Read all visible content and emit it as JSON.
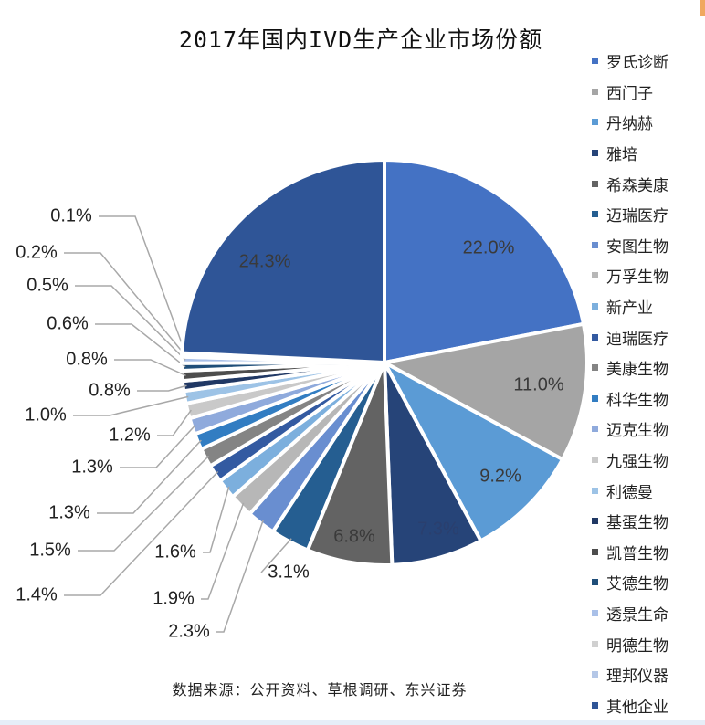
{
  "title": "2017年国内IVD生产企业市场份额",
  "source": "数据来源：公开资料、草根调研、东兴证券",
  "chart_data": {
    "type": "pie",
    "title": "2017年国内IVD生产企业市场份额",
    "start": "12 o'clock, clockwise",
    "legend_position": "right",
    "slices": [
      {
        "name": "罗氏诊断",
        "value": 22.0,
        "label": "22.0%",
        "color": "#4472C4"
      },
      {
        "name": "西门子",
        "value": 11.0,
        "label": "11.0%",
        "color": "#A5A5A5"
      },
      {
        "name": "丹纳赫",
        "value": 9.2,
        "label": "9.2%",
        "color": "#5B9BD5"
      },
      {
        "name": "雅培",
        "value": 7.3,
        "label": "7.3%",
        "color": "#264478"
      },
      {
        "name": "希森美康",
        "value": 6.8,
        "label": "6.8%",
        "color": "#636363"
      },
      {
        "name": "迈瑞医疗",
        "value": 3.1,
        "label": "3.1%",
        "color": "#255E91"
      },
      {
        "name": "安图生物",
        "value": 2.3,
        "label": "2.3%",
        "color": "#698ED0"
      },
      {
        "name": "万孚生物",
        "value": 1.9,
        "label": "1.9%",
        "color": "#B7B7B7"
      },
      {
        "name": "新产业",
        "value": 1.6,
        "label": "1.6%",
        "color": "#7CAFDD"
      },
      {
        "name": "迪瑞医疗",
        "value": 1.4,
        "label": "1.4%",
        "color": "#335AA1"
      },
      {
        "name": "美康生物",
        "value": 1.5,
        "label": "1.5%",
        "color": "#848484"
      },
      {
        "name": "科华生物",
        "value": 1.3,
        "label": "1.3%",
        "color": "#327DC2"
      },
      {
        "name": "迈克生物",
        "value": 1.3,
        "label": "1.3%",
        "color": "#8FAADC"
      },
      {
        "name": "九强生物",
        "value": 1.2,
        "label": "1.2%",
        "color": "#C9C9C9"
      },
      {
        "name": "利德曼",
        "value": 1.0,
        "label": "1.0%",
        "color": "#9DC3E6"
      },
      {
        "name": "基蛋生物",
        "value": 0.8,
        "label": "0.8%",
        "color": "#203864"
      },
      {
        "name": "凯普生物",
        "value": 0.8,
        "label": "0.8%",
        "color": "#4D4D4D"
      },
      {
        "name": "艾德生物",
        "value": 0.6,
        "label": "0.6%",
        "color": "#1F4E79"
      },
      {
        "name": "透景生命",
        "value": 0.5,
        "label": "0.5%",
        "color": "#A9C0E8"
      },
      {
        "name": "明德生物",
        "value": 0.2,
        "label": "0.2%",
        "color": "#D0D0D0"
      },
      {
        "name": "理邦仪器",
        "value": 0.1,
        "label": "0.1%",
        "color": "#B4C7E7"
      },
      {
        "name": "其他企业",
        "value": 24.3,
        "label": "24.3%",
        "color": "#2F5597"
      }
    ]
  }
}
